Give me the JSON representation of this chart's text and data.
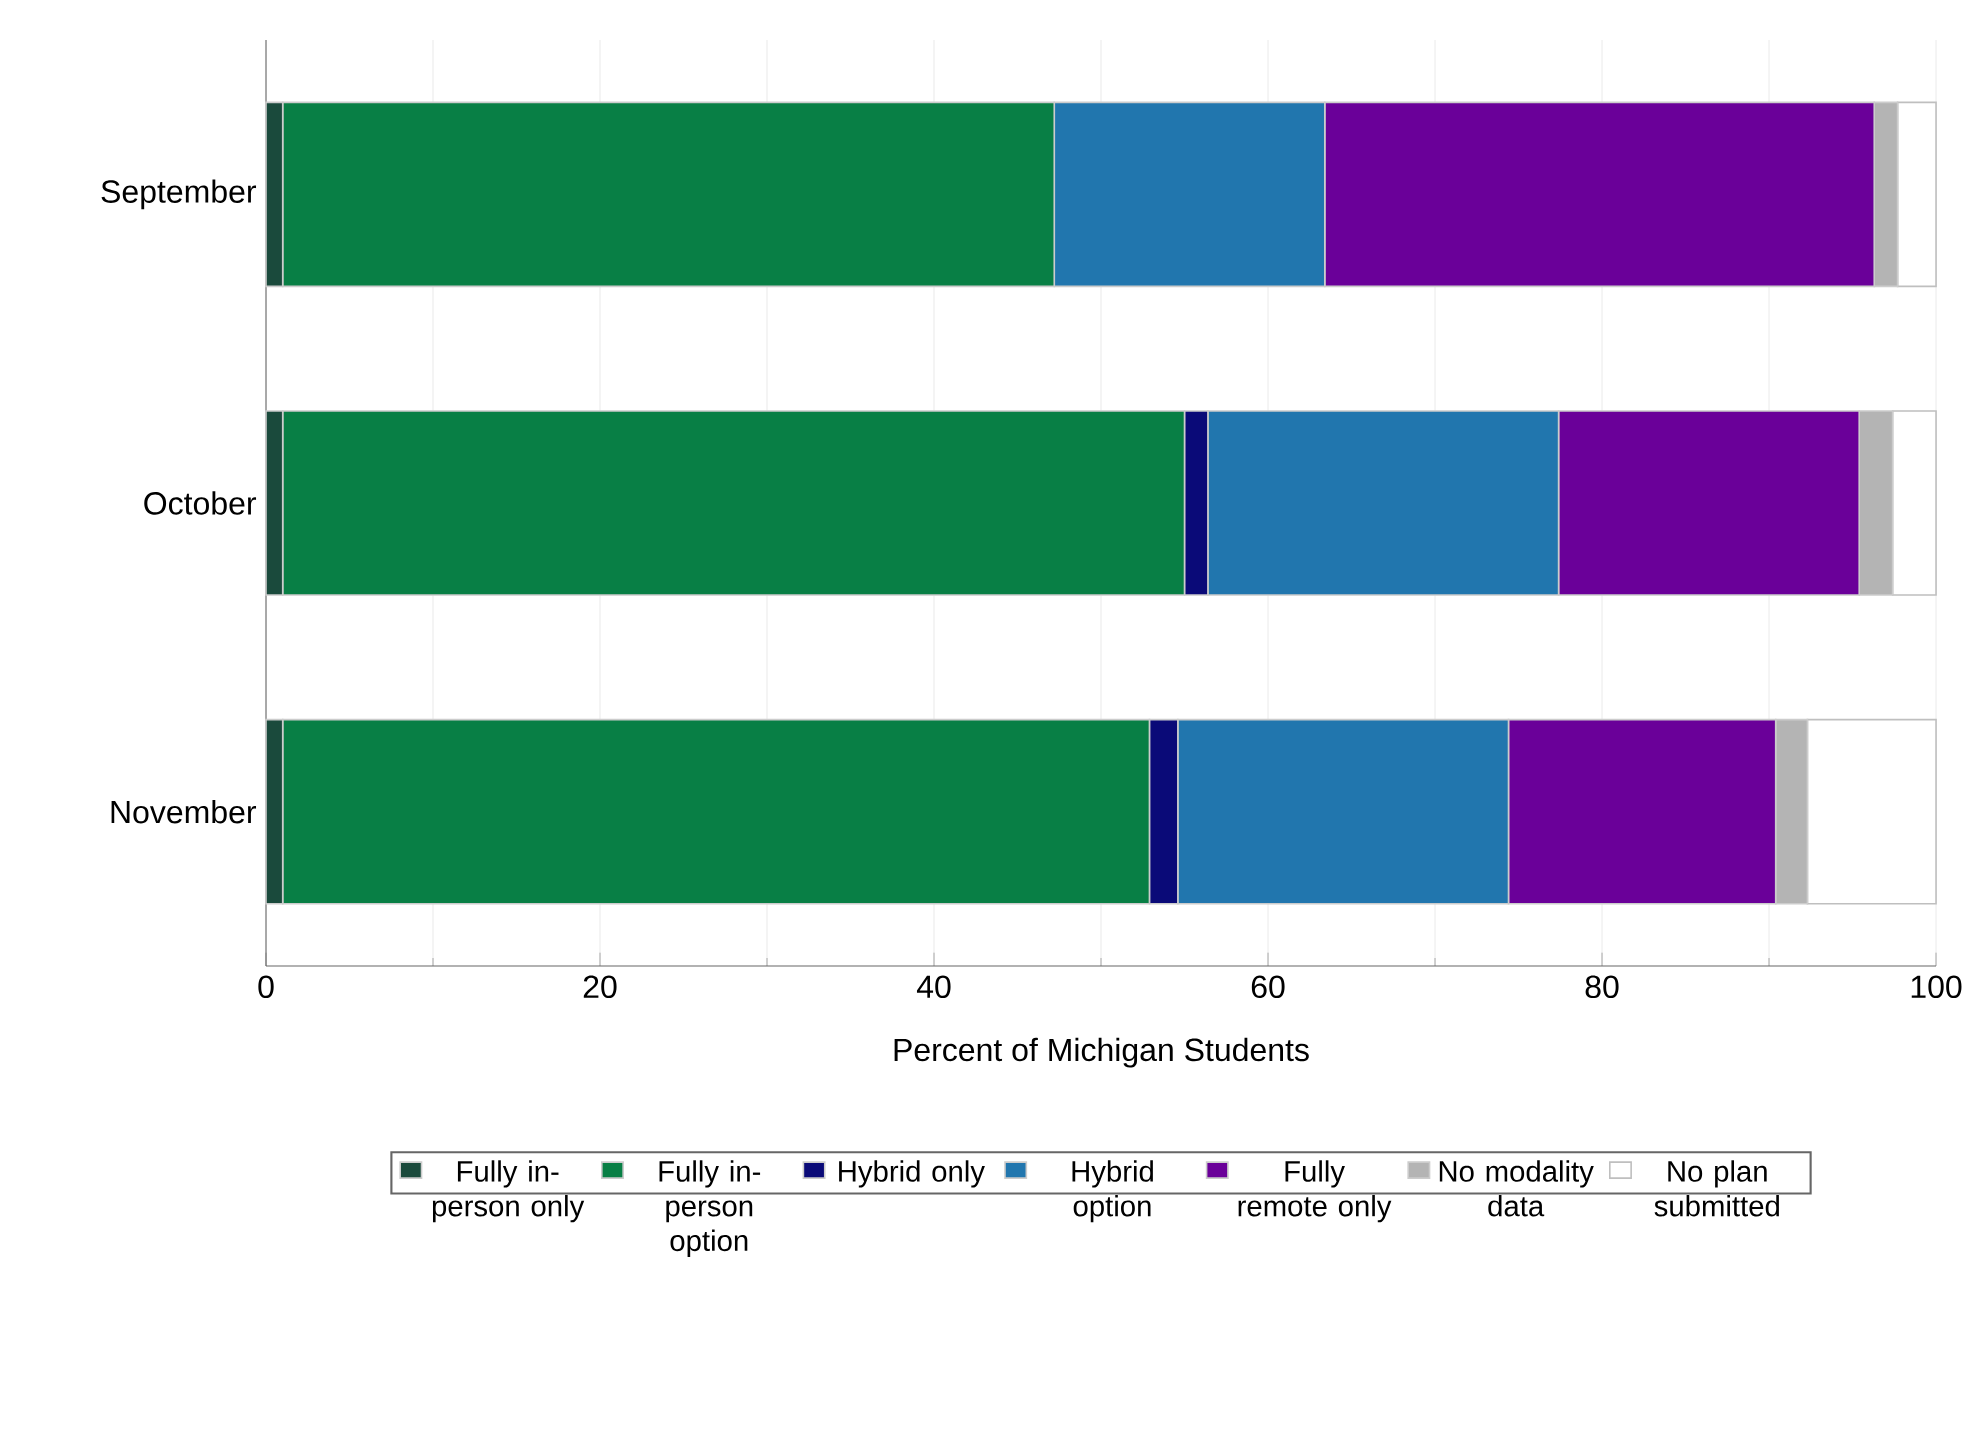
{
  "chart_data": {
    "type": "bar",
    "orientation": "horizontal",
    "stacked": true,
    "categories": [
      "September",
      "October",
      "November"
    ],
    "series": [
      {
        "name": "Fully in-person only",
        "color": "#1a4a3c",
        "values": [
          1.0,
          1.0,
          1.0
        ]
      },
      {
        "name": "Fully in-person option",
        "color": "#087f45",
        "values": [
          46.2,
          54.0,
          51.9
        ]
      },
      {
        "name": "Hybrid only",
        "color": "#0a0a78",
        "values": [
          0,
          1.4,
          1.7
        ]
      },
      {
        "name": "Hybrid option",
        "color": "#2176ae",
        "values": [
          16.2,
          21.0,
          19.8
        ]
      },
      {
        "name": "Fully remote only",
        "color": "#6a0099",
        "values": [
          32.9,
          18.0,
          16.0
        ]
      },
      {
        "name": "No modality data",
        "color": "#b4b4b4",
        "values": [
          1.4,
          2.0,
          1.9
        ]
      },
      {
        "name": "No plan submitted",
        "color": "#ffffff",
        "values": [
          2.3,
          2.6,
          7.7
        ]
      }
    ],
    "xlabel": "Percent of Michigan Students",
    "xlim": [
      0,
      100
    ],
    "xticks": [
      0,
      20,
      40,
      60,
      80,
      100
    ],
    "grid": "x",
    "legend": "bottom"
  }
}
